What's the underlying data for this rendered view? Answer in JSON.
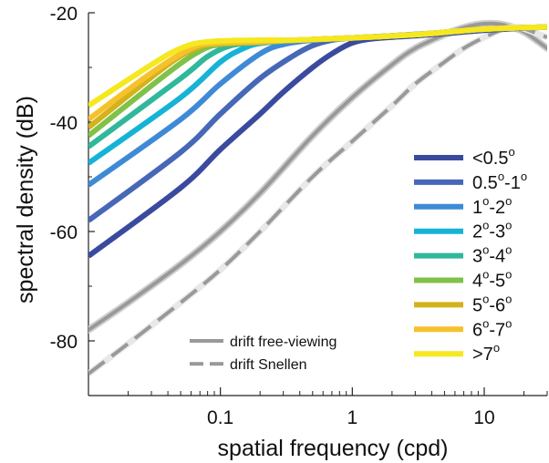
{
  "chart_data": {
    "type": "line",
    "xlabel": "spatial frequency (cpd)",
    "ylabel": "spectral density (dB)",
    "x_scale": "log",
    "xlim": [
      0.01,
      30
    ],
    "ylim": [
      -90,
      -20
    ],
    "x_ticks": [
      0.1,
      1,
      10
    ],
    "x_tick_labels": [
      "0.1",
      "1",
      "10"
    ],
    "y_ticks": [
      -80,
      -60,
      -40,
      -20
    ],
    "y_tick_labels": [
      "-80",
      "-60",
      "-40",
      "-20"
    ],
    "grid": false,
    "legend_position": "right",
    "bin_series": [
      {
        "name": "<0.5°",
        "color": "#3a4a9f",
        "x": [
          0.01,
          0.05,
          0.1,
          0.2,
          0.3,
          0.5,
          0.7,
          1.0,
          1.5,
          3,
          5,
          10,
          20,
          30
        ],
        "y": [
          -64.5,
          -52,
          -45,
          -38.5,
          -34.5,
          -30,
          -27.5,
          -25.5,
          -24.7,
          -24.2,
          -23.8,
          -23.2,
          -22.8,
          -22.6
        ]
      },
      {
        "name": "0.5°-1°",
        "color": "#4767b7",
        "x": [
          0.01,
          0.05,
          0.1,
          0.2,
          0.35,
          0.5,
          0.7,
          1.0,
          2,
          5,
          10,
          30
        ],
        "y": [
          -58,
          -45.5,
          -38.5,
          -32,
          -28,
          -26,
          -25,
          -24.6,
          -24.2,
          -23.6,
          -23.0,
          -22.6
        ]
      },
      {
        "name": "1°-2°",
        "color": "#3f8ad6",
        "x": [
          0.01,
          0.05,
          0.1,
          0.2,
          0.3,
          0.5,
          1.0,
          3,
          10,
          30
        ],
        "y": [
          -51.5,
          -39.5,
          -33,
          -27.5,
          -25.8,
          -25,
          -24.6,
          -24.0,
          -23.0,
          -22.6
        ]
      },
      {
        "name": "2°-3°",
        "color": "#16b3d6",
        "x": [
          0.01,
          0.05,
          0.1,
          0.15,
          0.2,
          0.3,
          0.5,
          1,
          3,
          10,
          30
        ],
        "y": [
          -47.5,
          -35.5,
          -29,
          -26.5,
          -25.6,
          -25.2,
          -24.9,
          -24.6,
          -24.0,
          -23.0,
          -22.6
        ]
      },
      {
        "name": "3°-4°",
        "color": "#2fb89a",
        "x": [
          0.01,
          0.05,
          0.08,
          0.12,
          0.2,
          0.3,
          0.5,
          1,
          3,
          10,
          30
        ],
        "y": [
          -44.5,
          -32,
          -28,
          -26,
          -25.4,
          -25.1,
          -24.9,
          -24.6,
          -24.0,
          -23.0,
          -22.6
        ]
      },
      {
        "name": "4°-5°",
        "color": "#7fc247",
        "x": [
          0.01,
          0.04,
          0.07,
          0.1,
          0.2,
          0.3,
          0.5,
          1,
          3,
          10,
          30
        ],
        "y": [
          -42.5,
          -31,
          -27,
          -25.8,
          -25.4,
          -25.1,
          -24.9,
          -24.6,
          -24.0,
          -23.0,
          -22.6
        ]
      },
      {
        "name": "5°-6°",
        "color": "#d4b21a",
        "x": [
          0.01,
          0.04,
          0.07,
          0.1,
          0.2,
          0.3,
          0.5,
          1,
          3,
          10,
          30
        ],
        "y": [
          -41,
          -29.5,
          -26.2,
          -25.6,
          -25.4,
          -25.1,
          -24.9,
          -24.6,
          -24.0,
          -23.0,
          -22.6
        ]
      },
      {
        "name": "6°-7°",
        "color": "#f6c22c",
        "x": [
          0.01,
          0.03,
          0.06,
          0.09,
          0.2,
          0.3,
          0.5,
          1,
          3,
          10,
          30
        ],
        "y": [
          -39.5,
          -31,
          -26.5,
          -25.6,
          -25.3,
          -25.1,
          -24.9,
          -24.6,
          -24.0,
          -23.0,
          -22.6
        ]
      },
      {
        "name": ">7°",
        "color": "#f5e81e",
        "x": [
          0.01,
          0.03,
          0.05,
          0.08,
          0.2,
          0.3,
          0.5,
          1,
          3,
          10,
          30
        ],
        "y": [
          -37,
          -29.5,
          -26.5,
          -25.3,
          -25.0,
          -25.0,
          -24.9,
          -24.6,
          -24.0,
          -23.0,
          -22.6
        ]
      }
    ],
    "drift_free_viewing": {
      "name": "drift free-viewing",
      "color": "#999999",
      "style": "solid",
      "x": [
        0.01,
        0.02,
        0.05,
        0.1,
        0.2,
        0.5,
        1,
        2,
        3,
        5,
        7,
        10,
        14,
        20,
        30
      ],
      "y": [
        -78,
        -73,
        -66,
        -60,
        -53,
        -42.5,
        -35.5,
        -29.5,
        -26.5,
        -24,
        -22.7,
        -22.0,
        -22.2,
        -23.5,
        -26.5
      ]
    },
    "drift_snellen": {
      "name": "drift Snellen",
      "color": "#999999",
      "style": "dashed",
      "x": [
        0.01,
        0.02,
        0.05,
        0.1,
        0.2,
        0.5,
        1,
        2,
        3,
        5,
        7,
        10,
        14,
        17,
        20,
        30
      ],
      "y": [
        -86,
        -80.5,
        -73,
        -67,
        -60,
        -50,
        -43.5,
        -37,
        -33,
        -29,
        -26.5,
        -24.5,
        -23,
        -22.6,
        -22.9,
        -24.5
      ]
    }
  }
}
